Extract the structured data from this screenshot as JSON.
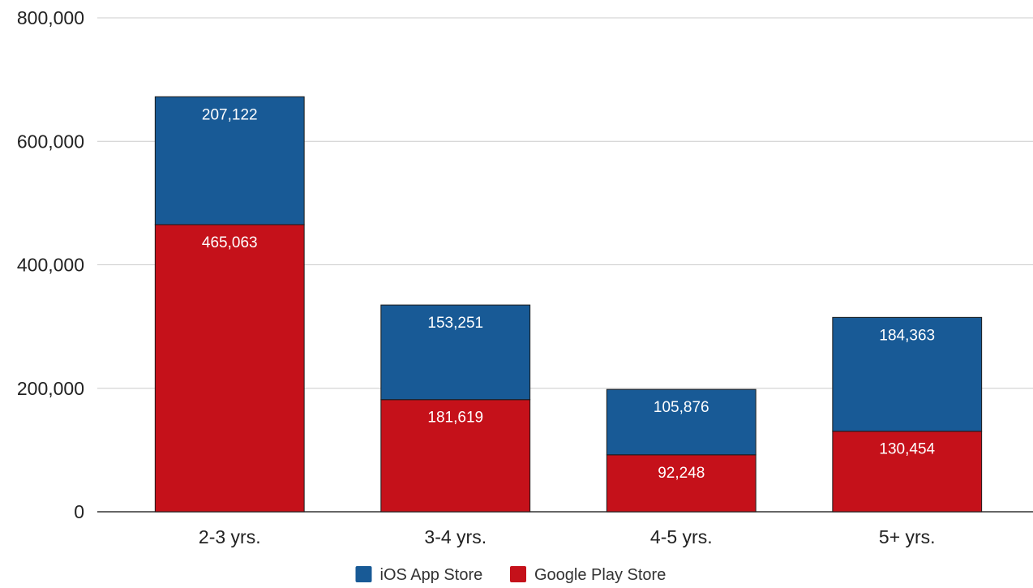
{
  "chart_data": {
    "type": "bar",
    "stacked": true,
    "categories": [
      "2-3 yrs.",
      "3-4 yrs.",
      "4-5 yrs.",
      "5+ yrs."
    ],
    "series": [
      {
        "name": "Google Play Store",
        "color": "#c5111a",
        "values": [
          465063,
          181619,
          92248,
          130454
        ],
        "labels": [
          "465,063",
          "181,619",
          "92,248",
          "130,454"
        ]
      },
      {
        "name": "iOS App Store",
        "color": "#185a96",
        "values": [
          207122,
          153251,
          105876,
          184363
        ],
        "labels": [
          "207,122",
          "153,251",
          "105,876",
          "184,363"
        ]
      }
    ],
    "legend_order": [
      "iOS App Store",
      "Google Play Store"
    ],
    "legend_position": "bottom",
    "yticks": [
      0,
      200000,
      400000,
      600000,
      800000
    ],
    "ytick_labels": [
      "0",
      "200,000",
      "400,000",
      "600,000",
      "800,000"
    ],
    "ylim": [
      0,
      800000
    ],
    "grid": true,
    "title": "",
    "xlabel": "",
    "ylabel": ""
  }
}
